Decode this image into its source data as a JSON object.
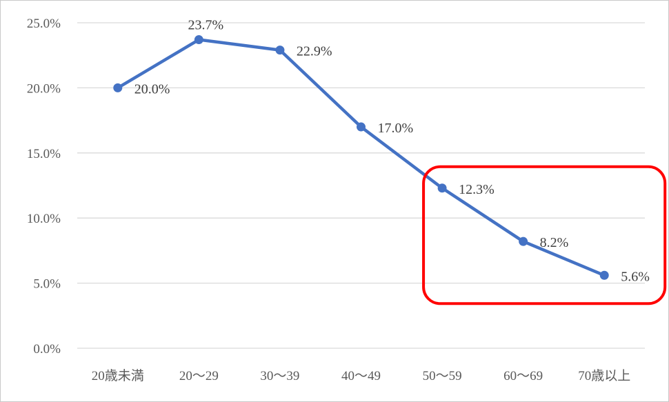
{
  "chart_data": {
    "type": "line",
    "categories": [
      "20歳未満",
      "20〜29",
      "30〜39",
      "40〜49",
      "50〜59",
      "60〜69",
      "70歳以上"
    ],
    "series": [
      {
        "values": [
          20.0,
          23.7,
          22.9,
          17.0,
          12.3,
          8.2,
          5.6
        ],
        "data_labels": [
          "20.0%",
          "23.7%",
          "22.9%",
          "17.0%",
          "12.3%",
          "8.2%",
          "5.6%"
        ],
        "color": "#4472c4"
      }
    ],
    "yticks": [
      "0.0%",
      "5.0%",
      "10.0%",
      "15.0%",
      "20.0%",
      "25.0%"
    ],
    "ylim": [
      0,
      25
    ],
    "title": "",
    "xlabel": "",
    "ylabel": "",
    "grid": true,
    "legend": "none",
    "highlight": {
      "shape": "rounded-rectangle",
      "color": "#ff0000",
      "categories": [
        "50〜59",
        "60〜69",
        "70歳以上"
      ]
    }
  }
}
